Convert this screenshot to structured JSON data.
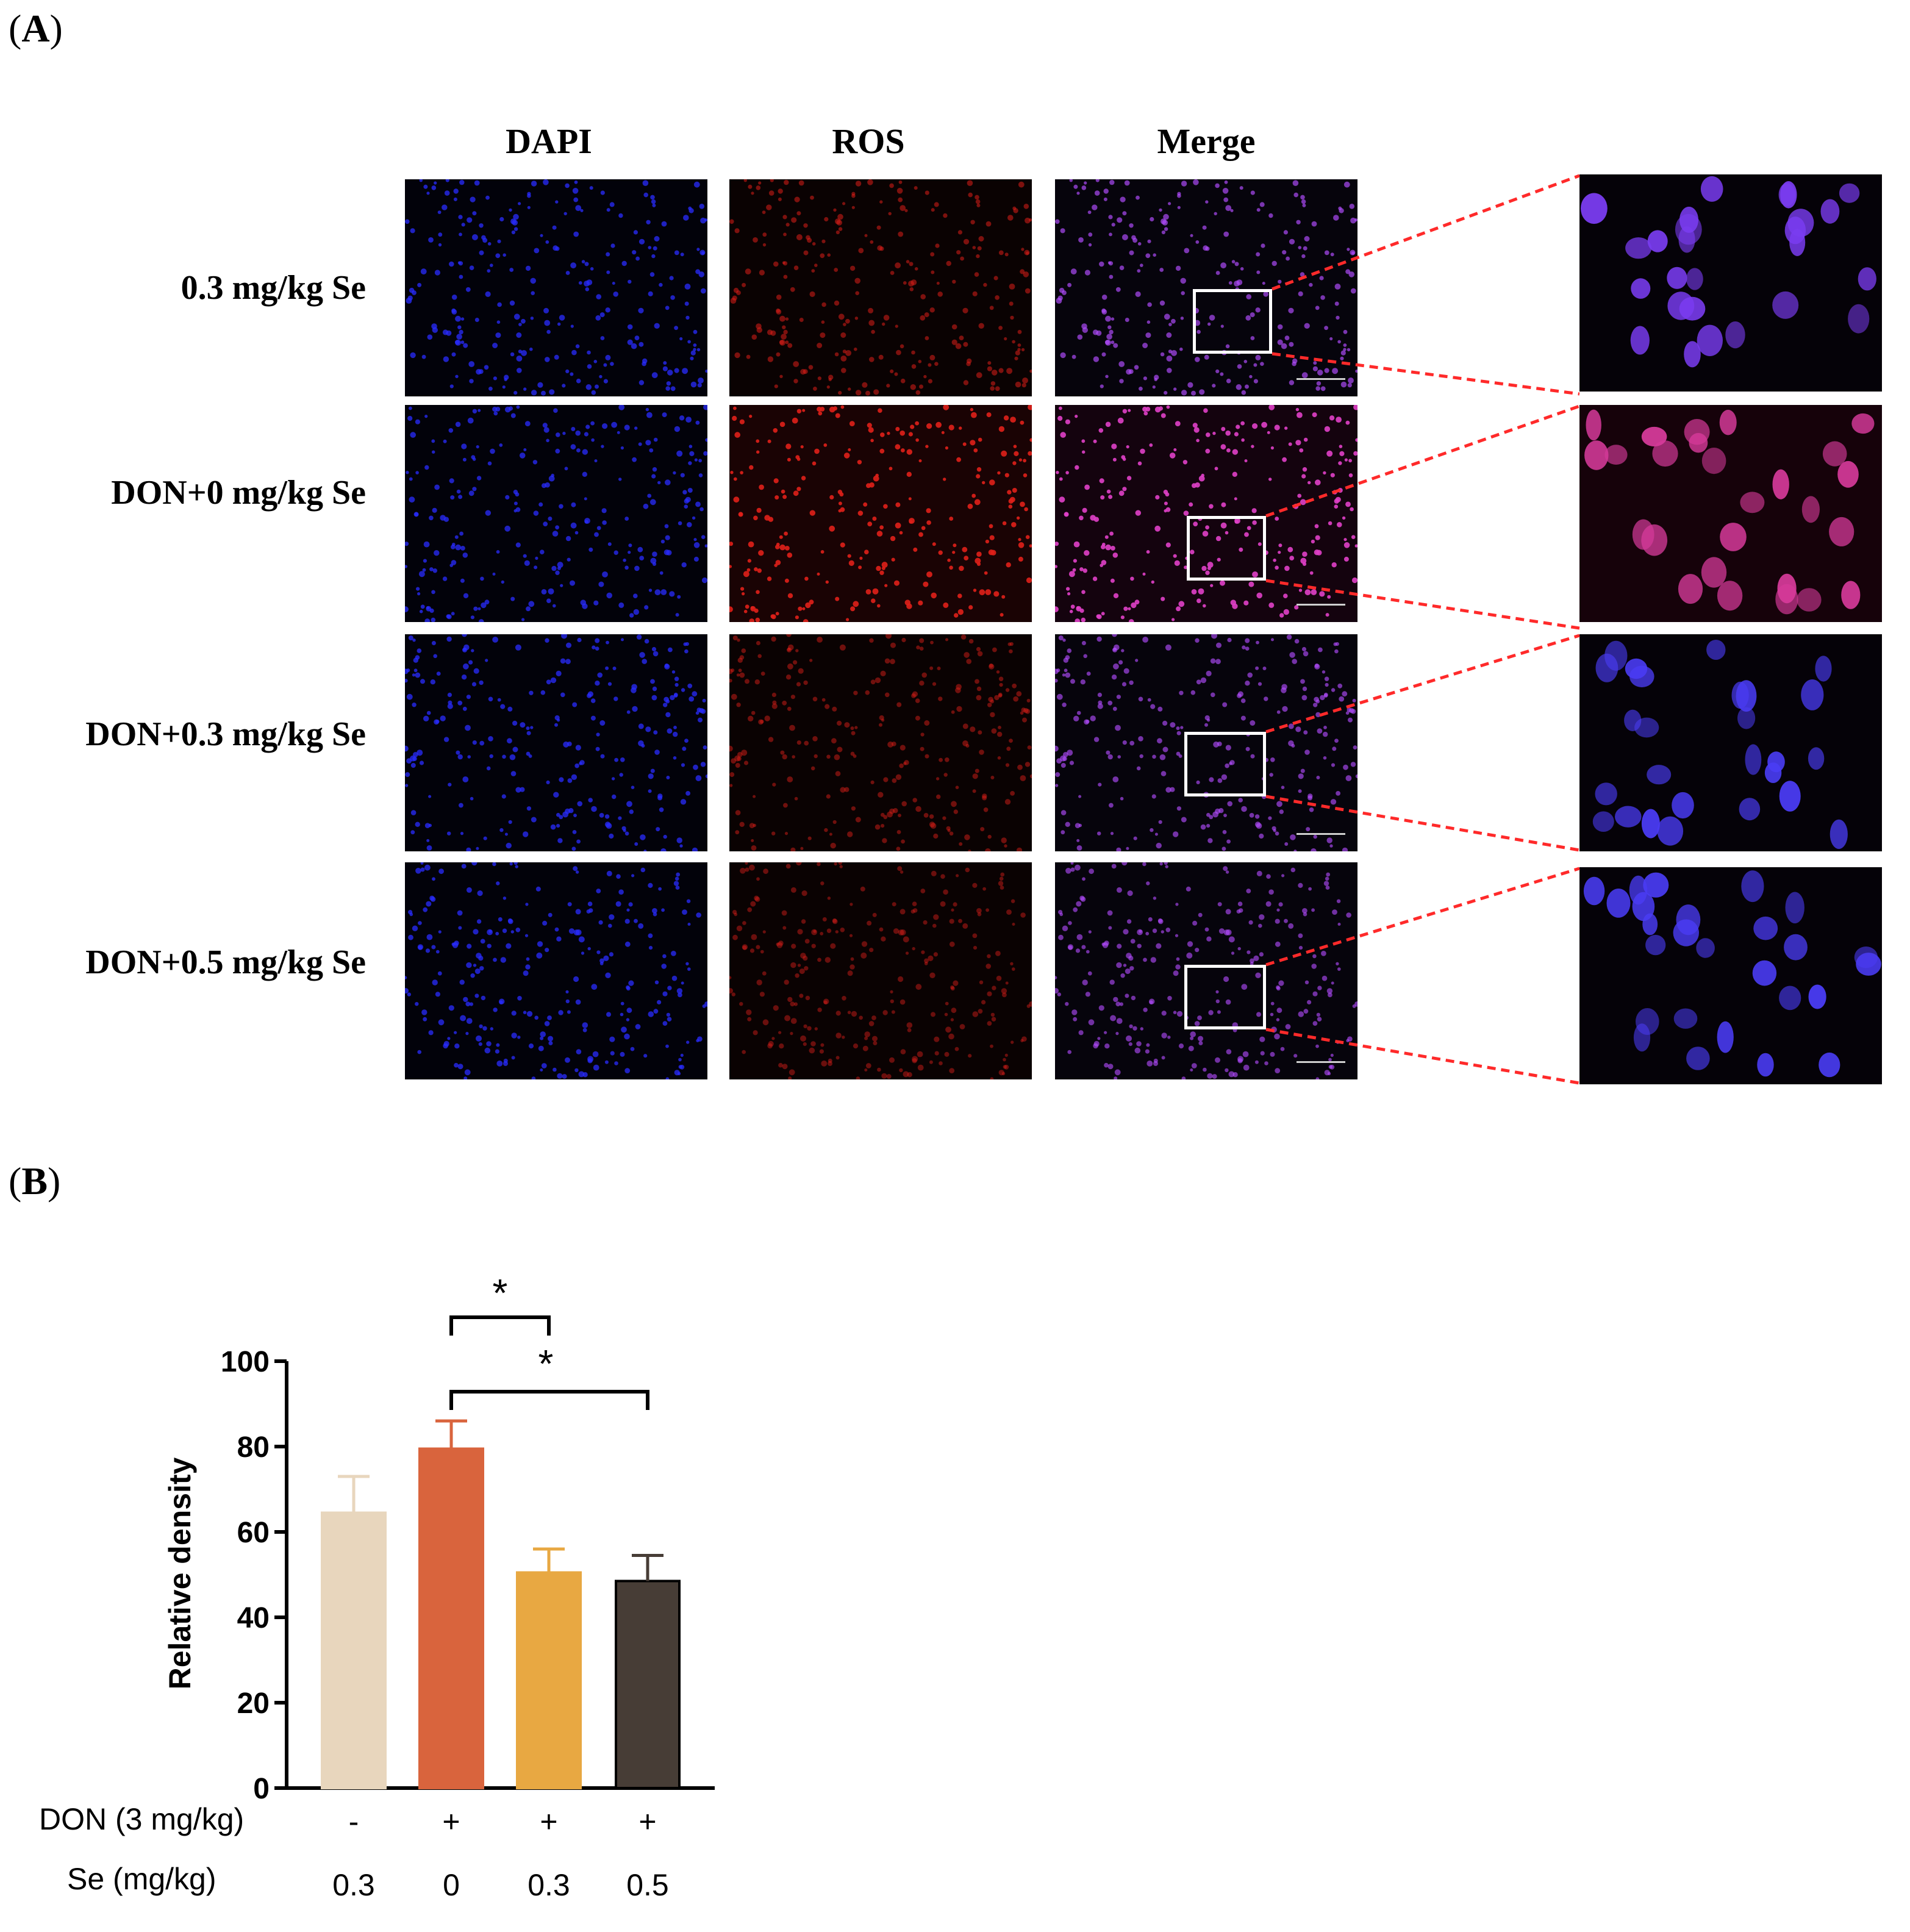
{
  "figure": {
    "panel_a_label_open": "(",
    "panel_a_label_letter": "A",
    "panel_a_label_close": ")",
    "panel_b_label_open": "(",
    "panel_b_label_letter": "B",
    "panel_b_label_close": ")",
    "columns": [
      "DAPI",
      "ROS",
      "Merge"
    ],
    "rows": [
      "0.3 mg/kg Se",
      "DON+0 mg/kg Se",
      "DON+0.3 mg/kg Se",
      "DON+0.5 mg/kg Se"
    ],
    "colors": {
      "dapi": "#2a2cff",
      "ros": "#e0201a",
      "merge": "#b34cff",
      "leader_line": "#ff2a2a",
      "inset_box": "#ffffff"
    },
    "ros_intensity": [
      0.45,
      1.0,
      0.35,
      0.3
    ]
  },
  "chart_data": {
    "type": "bar",
    "categories": [
      "1",
      "2",
      "3",
      "4"
    ],
    "series": [
      {
        "values": [
          64.5,
          79.5,
          50.5,
          48.5
        ],
        "errors": [
          8.5,
          6.5,
          5.5,
          6.0
        ]
      }
    ],
    "bar_colors": [
      "#e8d6bd",
      "#d9643d",
      "#e8a842",
      "#473d36"
    ],
    "ylabel": "Relative density",
    "ylim": [
      0,
      100
    ],
    "yticks": [
      "0",
      "20",
      "40",
      "60",
      "80",
      "100"
    ],
    "row_labels": {
      "don": {
        "label": "DON (3 mg/kg)",
        "values": [
          "-",
          "+",
          "+",
          "+"
        ]
      },
      "se": {
        "label": "Se (mg/kg)",
        "values": [
          "0.3",
          "0",
          "0.3",
          "0.5"
        ]
      }
    },
    "significance": [
      {
        "from": 2,
        "to": 3,
        "label": "*"
      },
      {
        "from": 2,
        "to": 4,
        "label": "*"
      }
    ]
  }
}
